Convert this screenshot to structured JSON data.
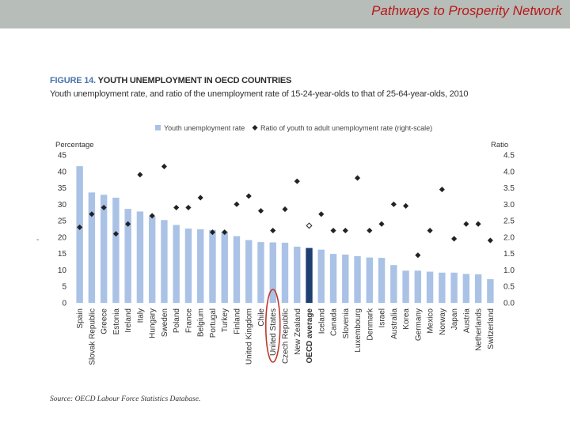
{
  "header": {
    "title": "Pathways to Prosperity Network"
  },
  "figure": {
    "label": "FIGURE 14.",
    "title": "YOUTH UNEMPLOYMENT IN OECD COUNTRIES",
    "subtitle": "Youth unemployment rate, and ratio of the unemployment rate of 15-24-year-olds to that of 25-64-year-olds, 2010",
    "source": "Source: OECD Labour Force Statistics Database.",
    "stray_mark": "-"
  },
  "chart_data": {
    "type": "bar",
    "categories": [
      "Spain",
      "Slovak Republic",
      "Greece",
      "Estonia",
      "Ireland",
      "Italy",
      "Hungary",
      "Sweden",
      "Poland",
      "France",
      "Belgium",
      "Portugal",
      "Turkey",
      "Finland",
      "United Kingdom",
      "Chile",
      "United States",
      "Czech Republic",
      "New Zealand",
      "OECD average",
      "Iceland",
      "Canada",
      "Slovenia",
      "Luxembourg",
      "Denmark",
      "Israel",
      "Australia",
      "Korea",
      "Germany",
      "Mexico",
      "Norway",
      "Japan",
      "Austria",
      "Netherlands",
      "Switzerland"
    ],
    "highlight_category": "OECD average",
    "circled_category": "United States",
    "series": [
      {
        "name": "Youth unemployment rate",
        "type": "bar",
        "axis": "left",
        "color": "#a9c2e6",
        "highlight_color": "#1f3f73",
        "values": [
          41.6,
          33.6,
          32.9,
          32.0,
          28.6,
          27.8,
          26.4,
          25.2,
          23.7,
          22.6,
          22.4,
          22.2,
          21.7,
          20.3,
          19.1,
          18.5,
          18.4,
          18.3,
          17.1,
          16.7,
          16.2,
          14.9,
          14.7,
          14.2,
          13.8,
          13.7,
          11.5,
          9.8,
          9.8,
          9.5,
          9.2,
          9.2,
          8.8,
          8.7,
          7.2
        ]
      },
      {
        "name": "Ratio of youth to adult unemployment rate (right-scale)",
        "type": "scatter",
        "axis": "right",
        "marker": "diamond",
        "color": "#222222",
        "highlight_color": "#ffffff",
        "values": [
          2.3,
          2.7,
          2.9,
          2.1,
          2.4,
          3.9,
          2.65,
          4.15,
          2.9,
          2.9,
          3.2,
          2.15,
          2.15,
          3.0,
          3.25,
          2.8,
          2.2,
          2.85,
          3.7,
          2.35,
          2.7,
          2.2,
          2.2,
          3.8,
          2.2,
          2.4,
          3.0,
          2.95,
          1.45,
          2.2,
          3.45,
          1.95,
          2.4,
          2.4,
          1.9
        ]
      }
    ],
    "ylabel": "Percentage",
    "ylabel_right": "Ratio",
    "ylim": [
      0,
      45
    ],
    "ylim_right": [
      0,
      4.5
    ],
    "yticks": [
      "0",
      "5",
      "10",
      "15",
      "20",
      "25",
      "30",
      "35",
      "40",
      "45"
    ],
    "yticks_right": [
      "0.0",
      "0.5",
      "1.0",
      "1.5",
      "2.0",
      "2.5",
      "3.0",
      "3.5",
      "4.0",
      "4.5"
    ],
    "grid": false,
    "legend_position": "top"
  }
}
